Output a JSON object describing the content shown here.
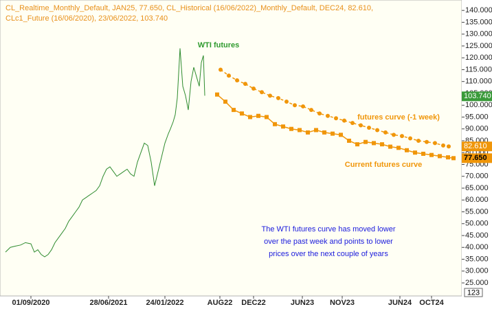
{
  "chart_data": {
    "type": "line",
    "header": [
      "CL_Realtime_Monthly_Default, JAN25, 77.650, CL_Historical (16/06/2022)_Monthly_Default, DEC24, 82.610,",
      "CLc1_Future (16/06/2020), 23/06/2022, 103.740"
    ],
    "xlim": [
      0,
      67.2
    ],
    "ylim": [
      19.5,
      144.4
    ],
    "xticks": [
      {
        "value": 4.5,
        "label": "01/09/2020"
      },
      {
        "value": 15.8,
        "label": "28/06/2021"
      },
      {
        "value": 24,
        "label": "24/01/2022"
      },
      {
        "value": 32,
        "label": "AUG22"
      },
      {
        "value": 36.9,
        "label": "DEC22"
      },
      {
        "value": 44,
        "label": "JUN23"
      },
      {
        "value": 49.8,
        "label": "NOV23"
      },
      {
        "value": 58.2,
        "label": "JUN24"
      },
      {
        "value": 62.8,
        "label": "OCT24"
      }
    ],
    "yticks": [
      {
        "value": 25,
        "label": "25.000"
      },
      {
        "value": 30,
        "label": "30.000"
      },
      {
        "value": 35,
        "label": "35.000"
      },
      {
        "value": 40,
        "label": "40.000"
      },
      {
        "value": 45,
        "label": "45.000"
      },
      {
        "value": 50,
        "label": "50.000"
      },
      {
        "value": 55,
        "label": "55.000"
      },
      {
        "value": 60,
        "label": "60.000"
      },
      {
        "value": 65,
        "label": "65.000"
      },
      {
        "value": 70,
        "label": "70.000"
      },
      {
        "value": 75,
        "label": "75.000"
      },
      {
        "value": 80,
        "label": "80.000"
      },
      {
        "value": 85,
        "label": "85.000"
      },
      {
        "value": 90,
        "label": "90.000"
      },
      {
        "value": 95,
        "label": "95.000"
      },
      {
        "value": 100,
        "label": "100.000"
      },
      {
        "value": 105,
        "label": "105.000"
      },
      {
        "value": 110,
        "label": "110.000"
      },
      {
        "value": 115,
        "label": "115.000"
      },
      {
        "value": 120,
        "label": "120.000"
      },
      {
        "value": 125,
        "label": "125.000"
      },
      {
        "value": 130,
        "label": "130.000"
      },
      {
        "value": 135,
        "label": "135.000"
      },
      {
        "value": 140,
        "label": "140.000"
      }
    ],
    "series": [
      {
        "color": "#2e8b2e",
        "style": "plain",
        "x": [
          0.8,
          1.5,
          2.2,
          3,
          3.7,
          4.5,
          5,
          5.5,
          6,
          6.5,
          7,
          7.5,
          8,
          8.5,
          9,
          9.5,
          10,
          10.5,
          11,
          11.5,
          12,
          12.5,
          13,
          13.5,
          14,
          14.5,
          15,
          15.5,
          16,
          16.5,
          17,
          17.5,
          18,
          18.5,
          19,
          19.5,
          20,
          20.5,
          21,
          21.5,
          22,
          22.5,
          23,
          23.5,
          24,
          24.5,
          24.8,
          25.2,
          25.5,
          25.8,
          26.2,
          26.6,
          27,
          27.4,
          27.8,
          28.2,
          28.6,
          29,
          29.3,
          29.6,
          29.8
        ],
        "values": [
          38,
          40,
          40.5,
          41,
          42,
          41.5,
          38,
          39,
          37,
          36,
          37,
          39,
          42,
          44,
          46,
          48,
          51,
          53,
          55,
          57,
          60,
          61,
          62,
          63,
          64,
          66,
          70,
          73,
          74,
          72,
          70,
          71,
          72,
          73,
          71,
          70,
          76,
          80,
          84,
          83,
          76,
          66,
          72,
          78,
          84,
          88,
          90,
          93,
          96,
          103,
          124,
          108,
          104,
          98,
          110,
          116,
          112,
          108,
          118,
          121,
          104
        ]
      },
      {
        "color": "#f0960a",
        "style": "square",
        "x": [
          31.6,
          32.8,
          34,
          35.2,
          36.4,
          37.6,
          38.8,
          40,
          41.2,
          42.4,
          43.6,
          44.8,
          46,
          47.2,
          48.4,
          49.6,
          50.8,
          52,
          53.2,
          54.4,
          55.6,
          56.8,
          58,
          59.2,
          60.4,
          61.6,
          62.8,
          64,
          65.2,
          66
        ],
        "values": [
          104.5,
          101.5,
          98,
          96.5,
          95,
          95.5,
          95,
          92,
          91,
          90,
          89.5,
          88.5,
          89.5,
          88.5,
          88,
          87.5,
          85,
          83.5,
          84.5,
          84,
          83.5,
          82.5,
          82,
          81,
          80,
          79.5,
          79,
          78.5,
          78,
          77.65
        ]
      },
      {
        "color": "#f0960a",
        "style": "circle",
        "x": [
          32.1,
          33.3,
          34.5,
          35.7,
          36.9,
          38.1,
          39.3,
          40.5,
          41.7,
          42.9,
          44.1,
          45.3,
          46.5,
          47.7,
          48.9,
          50.1,
          51.3,
          52.5,
          53.7,
          54.9,
          56.1,
          57.3,
          58.5,
          59.7,
          60.9,
          62.1,
          63.3,
          64.5,
          65.3
        ],
        "values": [
          115,
          112.5,
          110.5,
          109,
          107,
          105.5,
          104,
          103,
          101.5,
          100,
          99.5,
          98,
          96.5,
          95.5,
          94.5,
          93.5,
          92.5,
          91.5,
          90.5,
          89.5,
          88.5,
          87.5,
          87,
          86,
          85,
          84.5,
          84,
          83,
          82.61
        ]
      }
    ],
    "tags": [
      {
        "value": 103.74,
        "label": "103.740",
        "color": "#3a9a3a"
      },
      {
        "value": 82.61,
        "label": "82.610",
        "color": "#f0960a"
      },
      {
        "value": 77.65,
        "label": "77.650",
        "color": "#f0960a"
      }
    ],
    "annotations": [
      {
        "text": "WTI futures",
        "color": "#2e9a2e"
      },
      {
        "text": "futures curve (-1 week)",
        "color": "#f0960a"
      },
      {
        "text": "Current futures curve",
        "color": "#f0960a"
      },
      {
        "text": "The WTI futures curve has moved lower",
        "color": "#1a1adc"
      },
      {
        "text": "over the past week and points to lower",
        "color": "#1a1adc"
      },
      {
        "text": "prices over the next couple of years",
        "color": "#1a1adc"
      }
    ],
    "zoom_label": "123"
  }
}
